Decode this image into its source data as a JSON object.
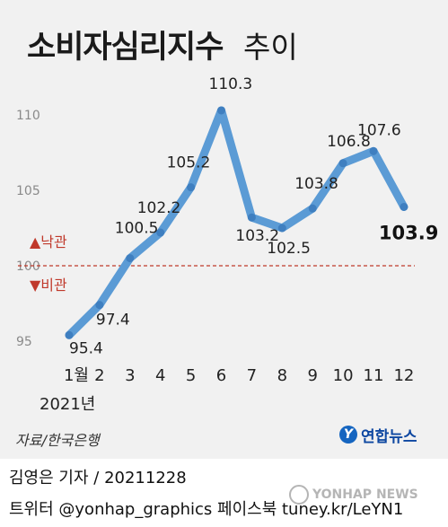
{
  "title": {
    "main": "소비자심리지수",
    "sub": "추이"
  },
  "chart_data": {
    "type": "line",
    "title": "소비자심리지수 추이",
    "categories": [
      "1월",
      "2",
      "3",
      "4",
      "5",
      "6",
      "7",
      "8",
      "9",
      "10",
      "11",
      "12"
    ],
    "values": [
      95.4,
      97.4,
      100.5,
      102.2,
      105.2,
      110.3,
      103.2,
      102.5,
      103.8,
      106.8,
      107.6,
      103.9
    ],
    "value_labels": [
      "95.4",
      "97.4",
      "100.5",
      "102.2",
      "105.2",
      "110.3",
      "103.2",
      "102.5",
      "103.8",
      "106.8",
      "107.6",
      "103.9"
    ],
    "y_ticks": [
      "95",
      "100",
      "105",
      "110"
    ],
    "ylim": [
      94.5,
      112
    ],
    "reference_line": {
      "value": 100,
      "above_label": "▲낙관",
      "below_label": "▼비관",
      "color": "#c0392b"
    },
    "year_label": "2021년",
    "line_color": "#5b9bd5",
    "grid": false
  },
  "source": "자료/한국은행",
  "logo": {
    "mark": "Y",
    "name": "연합뉴스"
  },
  "credit": {
    "name": "김영은 기자",
    "separator": "/",
    "date": "20211228"
  },
  "social": "트위터 @yonhap_graphics  페이스북 tuney.kr/LeYN1",
  "watermark": "YONHAP NEWS"
}
